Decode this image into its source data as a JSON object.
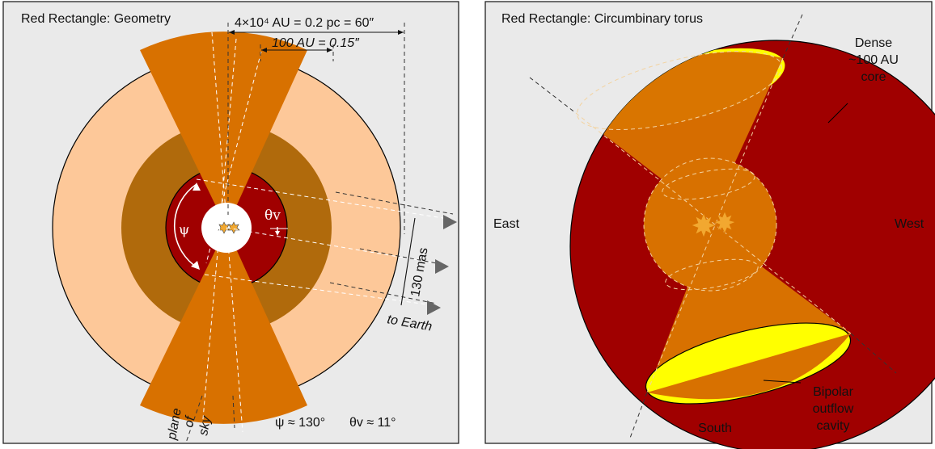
{
  "left_panel": {
    "title": "Red Rectangle: Geometry",
    "dim_outer": "4×10⁴ AU = 0.2 pc = 60″",
    "dim_inner": "100 AU = 0.15″",
    "psi_symbol": "ψ",
    "theta_symbol": "θv",
    "mas_label": "130 mas",
    "earth_label": "to Earth",
    "plane_line1": "plane",
    "plane_line2": "of",
    "plane_line3": "sky",
    "formula_psi": "ψ ≈ 130°",
    "formula_theta": "θv ≈ 11°"
  },
  "right_panel": {
    "title": "Red Rectangle: Circumbinary torus",
    "core_line1": "Dense",
    "core_line2": "~100 AU",
    "core_line3": "core",
    "east": "East",
    "west": "West",
    "south": "South",
    "cavity_line1": "Bipolar",
    "cavity_line2": "outflow",
    "cavity_line3": "cavity"
  },
  "colors": {
    "panel_bg": "#eaeaea",
    "outer_peach": "#fdc899",
    "mid_brown": "#b06a0c",
    "inner_red": "#a00000",
    "cone_orange": "#d87100",
    "cavity_yellow": "#ffff00",
    "star": "#f2a830"
  }
}
